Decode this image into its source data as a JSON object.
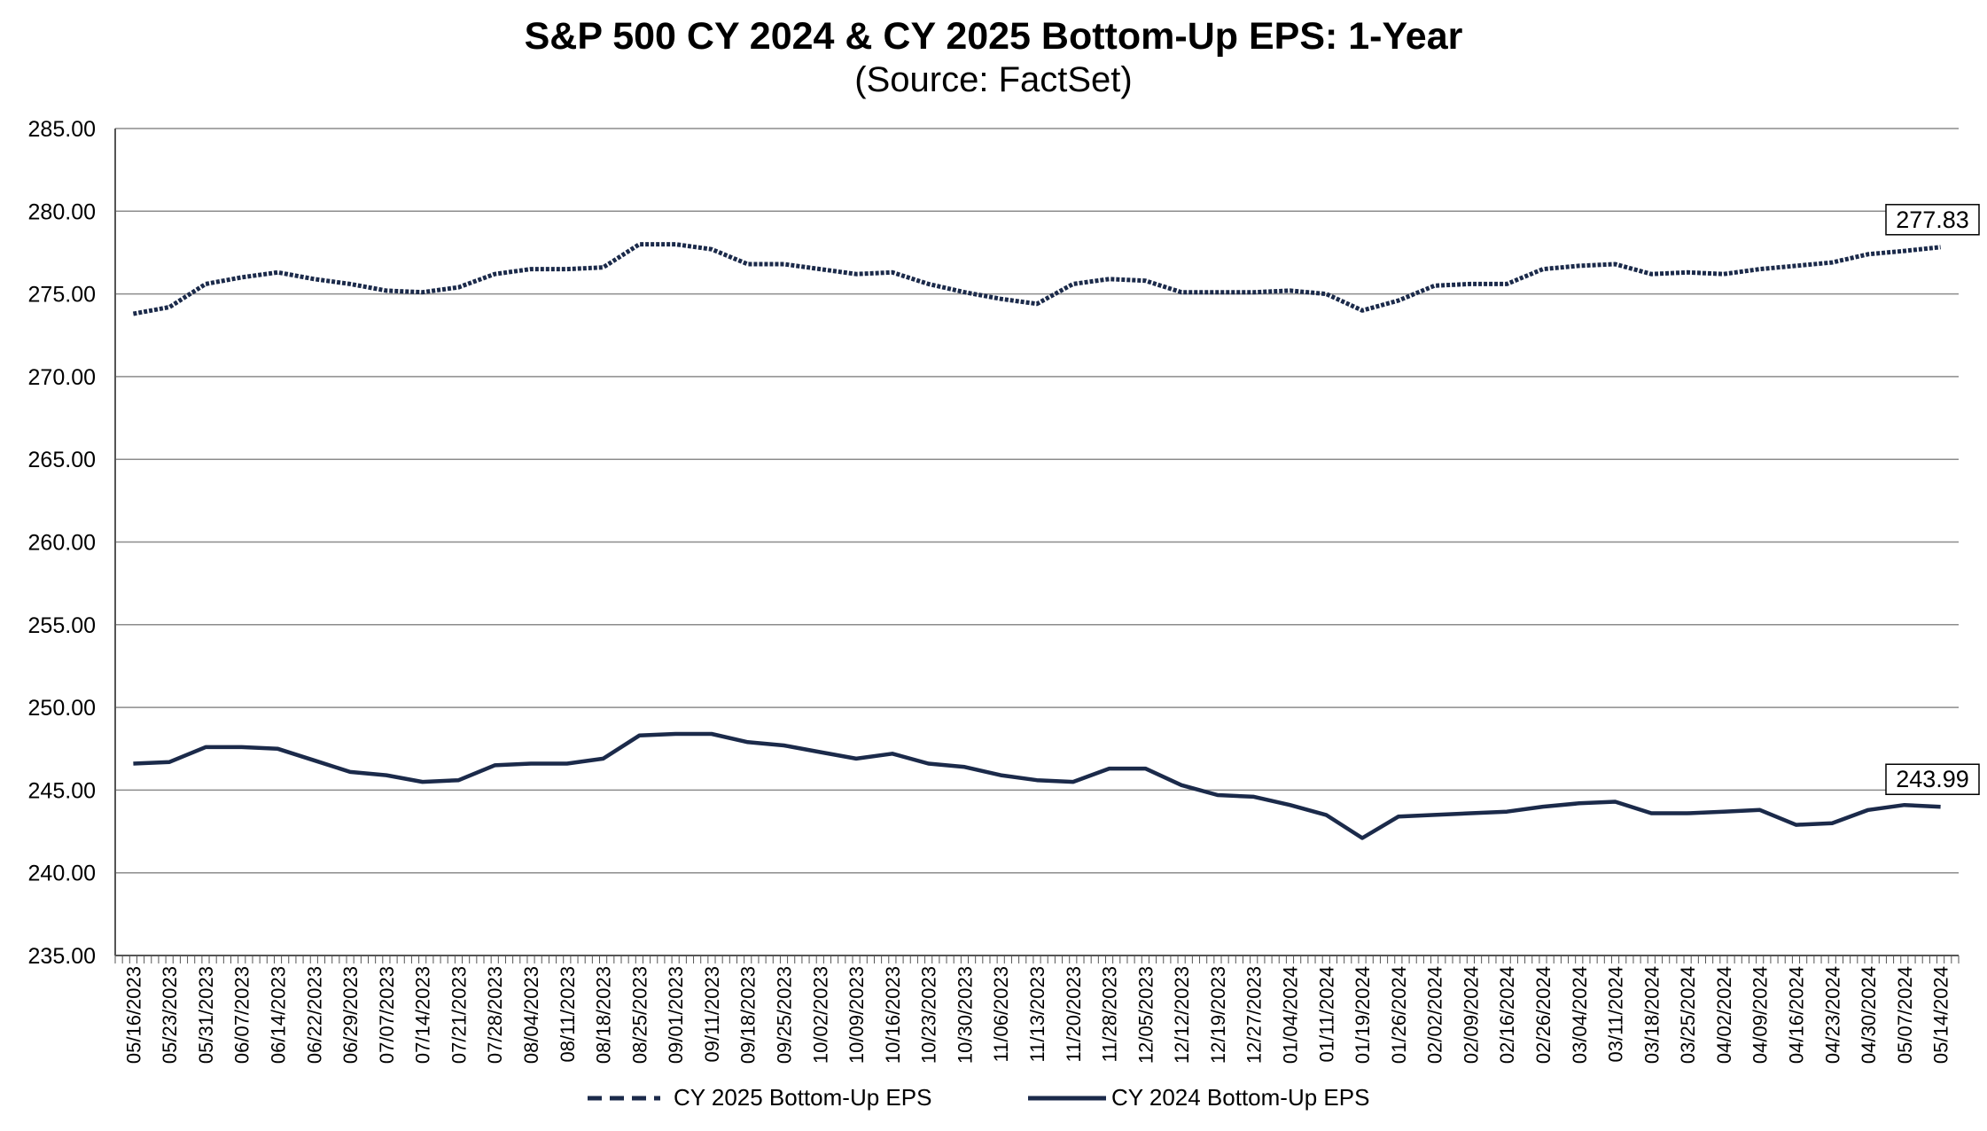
{
  "chart_data": {
    "type": "line",
    "title": "S&P 500 CY 2024 & CY 2025 Bottom-Up EPS: 1-Year",
    "subtitle": "(Source: FactSet)",
    "ylim": [
      235,
      285
    ],
    "yticks": [
      "235.00",
      "240.00",
      "245.00",
      "250.00",
      "255.00",
      "260.00",
      "265.00",
      "270.00",
      "275.00",
      "280.00",
      "285.00"
    ],
    "categories": [
      "05/16/2023",
      "05/23/2023",
      "05/31/2023",
      "06/07/2023",
      "06/14/2023",
      "06/22/2023",
      "06/29/2023",
      "07/07/2023",
      "07/14/2023",
      "07/21/2023",
      "07/28/2023",
      "08/04/2023",
      "08/11/2023",
      "08/18/2023",
      "08/25/2023",
      "09/01/2023",
      "09/11/2023",
      "09/18/2023",
      "09/25/2023",
      "10/02/2023",
      "10/09/2023",
      "10/16/2023",
      "10/23/2023",
      "10/30/2023",
      "11/06/2023",
      "11/13/2023",
      "11/20/2023",
      "11/28/2023",
      "12/05/2023",
      "12/12/2023",
      "12/19/2023",
      "12/27/2023",
      "01/04/2024",
      "01/11/2024",
      "01/19/2024",
      "01/26/2024",
      "02/02/2024",
      "02/09/2024",
      "02/16/2024",
      "02/26/2024",
      "03/04/2024",
      "03/11/2024",
      "03/18/2024",
      "03/25/2024",
      "04/02/2024",
      "04/09/2024",
      "04/16/2024",
      "04/23/2024",
      "04/30/2024",
      "05/07/2024",
      "05/14/2024"
    ],
    "grid": "horizontal",
    "legend_position": "bottom",
    "series": [
      {
        "name": "CY 2025 Bottom-Up EPS",
        "style": "dashed",
        "color": "#1b2a4a",
        "last_label": "277.83",
        "values": [
          273.8,
          274.2,
          275.6,
          276.0,
          276.3,
          275.9,
          275.6,
          275.2,
          275.1,
          275.4,
          276.2,
          276.5,
          276.5,
          276.6,
          278.0,
          278.0,
          277.7,
          276.8,
          276.8,
          276.5,
          276.2,
          276.3,
          275.6,
          275.1,
          274.7,
          274.4,
          275.6,
          275.9,
          275.8,
          275.1,
          275.1,
          275.1,
          275.2,
          275.0,
          274.0,
          274.6,
          275.5,
          275.6,
          275.6,
          276.5,
          276.7,
          276.8,
          276.2,
          276.3,
          276.2,
          276.5,
          276.7,
          276.9,
          277.4,
          277.6,
          277.83
        ]
      },
      {
        "name": "CY 2024 Bottom-Up EPS",
        "style": "solid",
        "color": "#1b2a4a",
        "last_label": "243.99",
        "values": [
          246.6,
          246.7,
          247.6,
          247.6,
          247.5,
          246.8,
          246.1,
          245.9,
          245.5,
          245.6,
          246.5,
          246.6,
          246.6,
          246.9,
          248.3,
          248.4,
          248.4,
          247.9,
          247.7,
          247.3,
          246.9,
          247.2,
          246.6,
          246.4,
          245.9,
          245.6,
          245.5,
          246.3,
          246.3,
          245.3,
          244.7,
          244.6,
          244.1,
          243.5,
          242.1,
          243.4,
          243.5,
          243.6,
          243.7,
          244.0,
          244.2,
          244.3,
          243.6,
          243.6,
          243.7,
          243.8,
          242.9,
          243.0,
          243.8,
          244.1,
          243.99
        ]
      }
    ]
  }
}
